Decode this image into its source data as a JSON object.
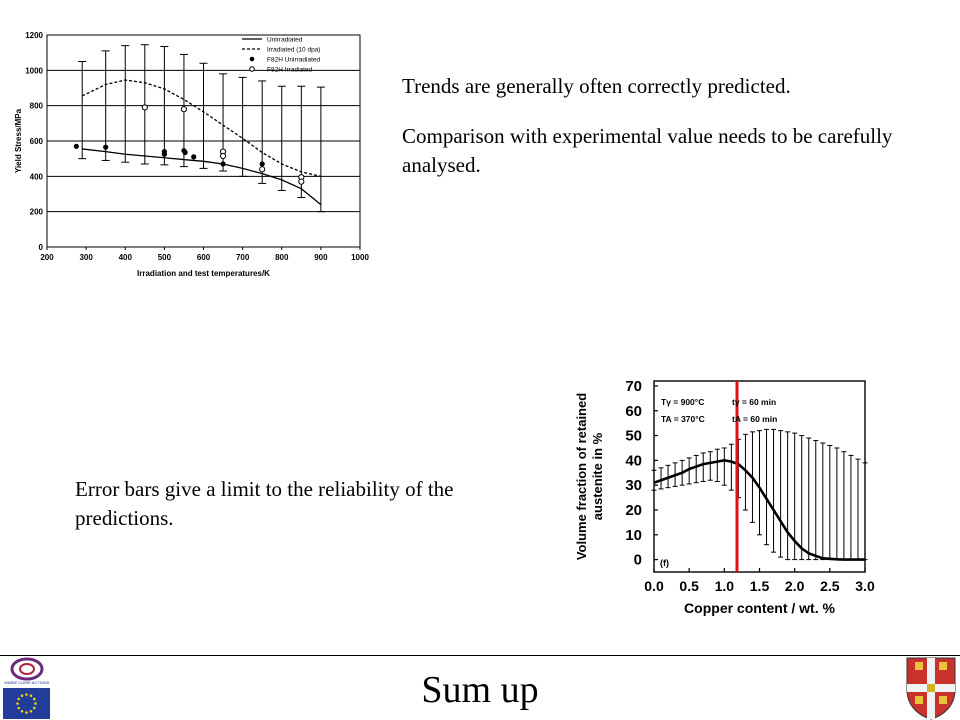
{
  "slide": {
    "title": "Sum up",
    "text_trends": "Trends are generally often correctly predicted.",
    "text_comparison": "Comparison with experimental value needs to be carefully analysed.",
    "text_error_bars": "Error bars give a limit to the reliability of the predictions."
  },
  "logos": {
    "left_top": "MARIE CURIE ACTIONS",
    "left_bottom": "eu-flag-icon",
    "right": "university-crest-icon"
  },
  "chart_data": [
    {
      "type": "line",
      "title": "",
      "xlabel": "Irradiation and test temperatures/K",
      "ylabel": "Yield Stress/MPa",
      "xlim": [
        200,
        1000
      ],
      "ylim": [
        0,
        1200
      ],
      "xticks": [
        "200",
        "300",
        "400",
        "500",
        "600",
        "700",
        "800",
        "900",
        "1000"
      ],
      "yticks": [
        "0",
        "200",
        "400",
        "600",
        "800",
        "1000",
        "1200"
      ],
      "grid": "horizontal",
      "legend": [
        "Unirradiated",
        "Irradiated (10 dpa)",
        "F82H Unirradiated",
        "F82H Irradiated"
      ],
      "legend_position": "top-right",
      "x": [
        290,
        350,
        400,
        450,
        500,
        550,
        600,
        650,
        700,
        750,
        800,
        850,
        900
      ],
      "series": [
        {
          "name": "Unirradiated",
          "style": "solid",
          "values": [
            555,
            540,
            525,
            515,
            505,
            495,
            485,
            470,
            445,
            415,
            380,
            330,
            240
          ]
        },
        {
          "name": "Irradiated (10 dpa)",
          "style": "dashed",
          "values": [
            855,
            920,
            945,
            930,
            895,
            835,
            765,
            690,
            615,
            535,
            470,
            425,
            400
          ]
        }
      ],
      "error_bars": {
        "x": [
          290,
          350,
          400,
          450,
          500,
          550,
          600,
          650,
          700,
          750,
          800,
          850,
          900
        ],
        "upper": [
          1050,
          1110,
          1140,
          1145,
          1135,
          1090,
          1040,
          980,
          960,
          940,
          910,
          910,
          905
        ],
        "lower": [
          500,
          490,
          480,
          470,
          465,
          455,
          445,
          430,
          400,
          360,
          320,
          280,
          200
        ]
      },
      "points_unirradiated": [
        {
          "x": 275,
          "y": 570
        },
        {
          "x": 350,
          "y": 565
        },
        {
          "x": 500,
          "y": 540
        },
        {
          "x": 500,
          "y": 525
        },
        {
          "x": 550,
          "y": 545
        },
        {
          "x": 553,
          "y": 535
        },
        {
          "x": 575,
          "y": 510
        },
        {
          "x": 650,
          "y": 470
        },
        {
          "x": 750,
          "y": 470
        }
      ],
      "points_irradiated": [
        {
          "x": 450,
          "y": 790
        },
        {
          "x": 550,
          "y": 780
        },
        {
          "x": 650,
          "y": 540
        },
        {
          "x": 650,
          "y": 515
        },
        {
          "x": 750,
          "y": 440
        },
        {
          "x": 850,
          "y": 395
        },
        {
          "x": 850,
          "y": 370
        }
      ]
    },
    {
      "type": "line",
      "title": "",
      "xlabel": "Copper content  / wt. %",
      "ylabel": "Volume fraction of retained austenite in %",
      "xlim": [
        0,
        3
      ],
      "ylim": [
        -5,
        72
      ],
      "xticks": [
        "0.0",
        "0.5",
        "1.0",
        "1.5",
        "2.0",
        "2.5",
        "3.0"
      ],
      "yticks": [
        "0",
        "10",
        "20",
        "30",
        "40",
        "50",
        "60",
        "70"
      ],
      "panel_label": "(f)",
      "annotations": [
        "Tγ = 900°C",
        "tγ = 60 min",
        "TA = 370°C",
        "tA = 60 min"
      ],
      "vertical_line_x": 1.18,
      "vertical_line_color": "#e01010",
      "x": [
        0.0,
        0.1,
        0.2,
        0.3,
        0.4,
        0.5,
        0.6,
        0.7,
        0.8,
        0.9,
        1.0,
        1.1,
        1.2,
        1.3,
        1.4,
        1.5,
        1.6,
        1.7,
        1.8,
        1.9,
        2.0,
        2.1,
        2.2,
        2.3,
        2.4,
        2.5,
        2.6,
        2.7,
        2.8,
        2.9,
        3.0
      ],
      "series": [
        {
          "name": "",
          "values": [
            31,
            32,
            33,
            34,
            35,
            36.5,
            37.5,
            38.5,
            39,
            39.5,
            40,
            39.5,
            38.5,
            36,
            33,
            29,
            24.5,
            20,
            15.5,
            11,
            7.5,
            4.5,
            2.5,
            1.5,
            0.5,
            0.3,
            0.1,
            0,
            0,
            0,
            0
          ]
        }
      ],
      "error_bars": {
        "upper": [
          36,
          37,
          38,
          39,
          40,
          41,
          42,
          43,
          43.5,
          44.5,
          45,
          46.5,
          48.5,
          50.5,
          51.5,
          52,
          52.5,
          52.5,
          52,
          51.5,
          51,
          50,
          49,
          48,
          47,
          46,
          45,
          43.5,
          42,
          40.5,
          39
        ],
        "lower": [
          28,
          28.5,
          29,
          29.5,
          30,
          30.5,
          31,
          31.5,
          32,
          31.5,
          30,
          28,
          25,
          20,
          15,
          10,
          6,
          3,
          1,
          0,
          0,
          0,
          0,
          0,
          0,
          0,
          0,
          0,
          0,
          0,
          0
        ]
      }
    }
  ]
}
